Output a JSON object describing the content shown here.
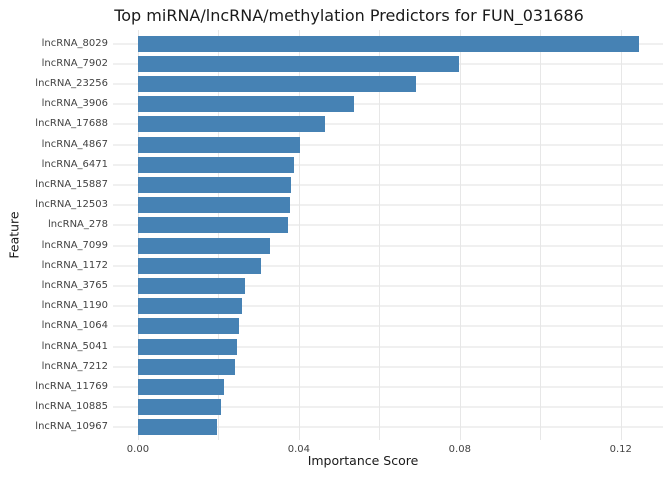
{
  "chart_data": {
    "type": "bar",
    "orientation": "horizontal",
    "title": "Top miRNA/lncRNA/methylation Predictors for FUN_031686",
    "xlabel": "Importance Score",
    "ylabel": "Feature",
    "categories": [
      "lncRNA_8029",
      "lncRNA_7902",
      "lncRNA_23256",
      "lncRNA_3906",
      "lncRNA_17688",
      "lncRNA_4867",
      "lncRNA_6471",
      "lncRNA_15887",
      "lncRNA_12503",
      "lncRNA_278",
      "lncRNA_7099",
      "lncRNA_1172",
      "lncRNA_3765",
      "lncRNA_1190",
      "lncRNA_1064",
      "lncRNA_5041",
      "lncRNA_7212",
      "lncRNA_11769",
      "lncRNA_10885",
      "lncRNA_10967"
    ],
    "values": [
      0.1245,
      0.0797,
      0.0692,
      0.0536,
      0.0464,
      0.0403,
      0.0389,
      0.0381,
      0.0379,
      0.0374,
      0.0327,
      0.0305,
      0.0265,
      0.0258,
      0.0252,
      0.0245,
      0.0242,
      0.0214,
      0.0206,
      0.0197
    ],
    "x_tick_labels": [
      "0.00",
      "0.04",
      "0.08",
      "0.12"
    ],
    "x_tick_values": [
      0.0,
      0.04,
      0.08,
      0.12
    ],
    "xlim": [
      -0.0062,
      0.1305
    ],
    "grid": true,
    "grid_step": 0.02,
    "legend": "none",
    "bar_color": "#4682B4",
    "grid_color_h": "#f0f0f0",
    "grid_color_v": "#e7e7e7",
    "background_color": "#ffffff"
  }
}
